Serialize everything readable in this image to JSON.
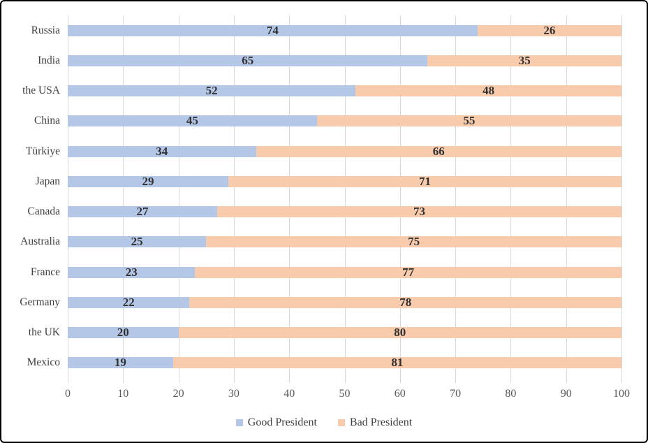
{
  "chart_data": {
    "type": "bar",
    "orientation": "horizontal",
    "stacked": true,
    "title": "",
    "xlabel": "",
    "ylabel": "",
    "categories": [
      "Russia",
      "India",
      "the USA",
      "China",
      "Türkiye",
      "Japan",
      "Canada",
      "Australia",
      "France",
      "Germany",
      "the UK",
      "Mexico"
    ],
    "series": [
      {
        "name": "Good President",
        "color": "#b4c7e7",
        "values": [
          74,
          65,
          52,
          45,
          34,
          29,
          27,
          25,
          23,
          22,
          20,
          19
        ]
      },
      {
        "name": "Bad President",
        "color": "#f8cbad",
        "values": [
          26,
          35,
          48,
          55,
          66,
          71,
          73,
          75,
          77,
          78,
          80,
          81
        ]
      }
    ],
    "xlim": [
      0,
      100
    ],
    "x_ticks": [
      0,
      10,
      20,
      30,
      40,
      50,
      60,
      70,
      80,
      90,
      100
    ],
    "grid": "vertical",
    "legend_position": "bottom",
    "data_labels": "centered"
  },
  "colors": {
    "good_president": "#b4c7e7",
    "bad_president": "#f8cbad",
    "gridline": "#d9d9d9",
    "category_text": "#404040",
    "tick_text": "#595959",
    "value_text": "#303030",
    "frame_border": "#000000",
    "background": "#ffffff"
  }
}
